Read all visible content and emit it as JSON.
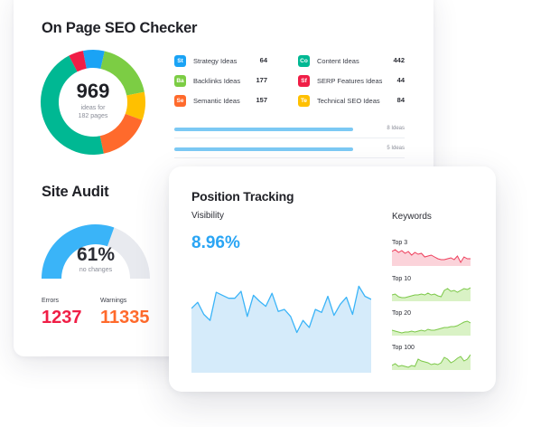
{
  "seo_checker": {
    "title": "On Page SEO Checker",
    "total": "969",
    "total_sub_line1": "ideas for",
    "total_sub_line2": "182 pages",
    "ideas": [
      {
        "abbr": "St",
        "label": "Strategy Ideas",
        "value": "64",
        "color": "#1aa3f5"
      },
      {
        "abbr": "Ba",
        "label": "Backlinks Ideas",
        "value": "177",
        "color": "#7ccd44"
      },
      {
        "abbr": "Se",
        "label": "Semantic Ideas",
        "value": "157",
        "color": "#ff6a2c"
      },
      {
        "abbr": "Co",
        "label": "Content Ideas",
        "value": "442",
        "color": "#00b893"
      },
      {
        "abbr": "Sf",
        "label": "SERP Features Ideas",
        "value": "44",
        "color": "#f01e46"
      },
      {
        "abbr": "Te",
        "label": "Technical SEO Ideas",
        "value": "84",
        "color": "#ffc000"
      }
    ],
    "bars": [
      {
        "label": "8 Ideas"
      },
      {
        "label": "5 Ideas"
      }
    ]
  },
  "site_audit": {
    "title": "Site Audit",
    "percent": "61%",
    "percent_value": 61,
    "sub": "no changes",
    "errors_label": "Errors",
    "errors_value": "1237",
    "errors_color": "#f01e46",
    "warnings_label": "Warnings",
    "warnings_value": "11335",
    "warnings_color": "#ff6a2c",
    "gauge_color": "#3ab4f8",
    "gauge_track_color": "#e8eaef"
  },
  "position_tracking": {
    "title": "Position Tracking",
    "visibility_label": "Visibility",
    "visibility_value": "8.96%",
    "keywords_label": "Keywords",
    "sparklines": [
      {
        "label": "Top 3",
        "color": "#ee3f5c",
        "fill": "#fbd3da"
      },
      {
        "label": "Top 10",
        "color": "#7cc848",
        "fill": "#d9f2c5"
      },
      {
        "label": "Top 20",
        "color": "#7cc848",
        "fill": "#d9f2c5"
      },
      {
        "label": "Top 100",
        "color": "#7cc848",
        "fill": "#d9f2c5"
      }
    ]
  },
  "chart_data": [
    {
      "type": "pie",
      "title": "On Page SEO Checker",
      "categories": [
        "Strategy Ideas",
        "Backlinks Ideas",
        "Technical SEO Ideas",
        "Semantic Ideas",
        "Content Ideas",
        "SERP Features Ideas"
      ],
      "values": [
        64,
        177,
        84,
        157,
        442,
        44
      ],
      "center_label": "969 ideas for 182 pages"
    },
    {
      "type": "line",
      "title": "Visibility",
      "values": [
        64,
        70,
        58,
        52,
        80,
        77,
        74,
        74,
        81,
        56,
        77,
        71,
        66,
        79,
        61,
        63,
        56,
        40,
        52,
        45,
        63,
        60,
        76,
        57,
        68,
        75,
        58,
        86,
        76,
        73
      ],
      "headline": "8.96%"
    }
  ]
}
